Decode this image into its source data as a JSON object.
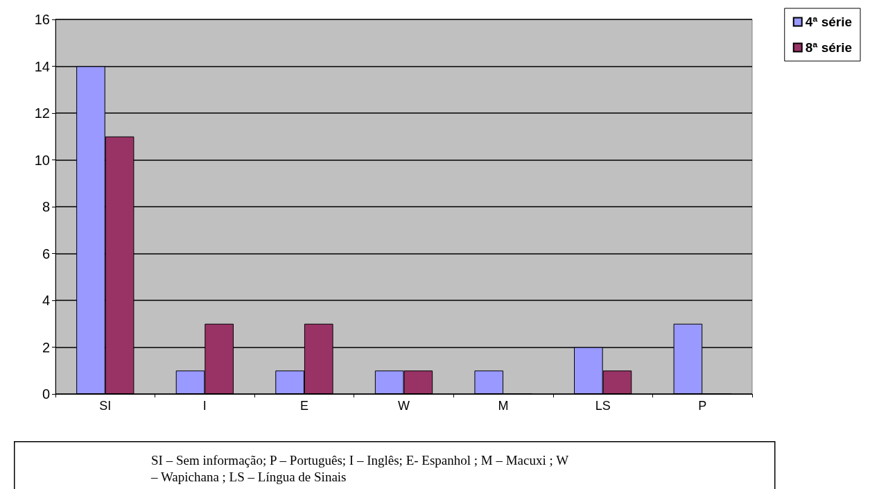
{
  "chart_data": {
    "type": "bar",
    "categories": [
      "SI",
      "I",
      "E",
      "W",
      "M",
      "LS",
      "P"
    ],
    "series": [
      {
        "name": "4ª série",
        "color": "#9999ff",
        "values": [
          14,
          1,
          1,
          1,
          1,
          2,
          3
        ]
      },
      {
        "name": "8ª série",
        "color": "#993366",
        "values": [
          11,
          3,
          3,
          1,
          0,
          1,
          0
        ]
      }
    ],
    "ylim": [
      0,
      16
    ],
    "yticks": [
      0,
      2,
      4,
      6,
      8,
      10,
      12,
      14,
      16
    ],
    "grid": "y",
    "legend": "top right",
    "annotations": [
      "SI – Sem informação; P – Português; I – Inglês; E- Espanhol ; M – Macuxi ; W – Wapichana ; LS – Língua de Sinais"
    ]
  }
}
